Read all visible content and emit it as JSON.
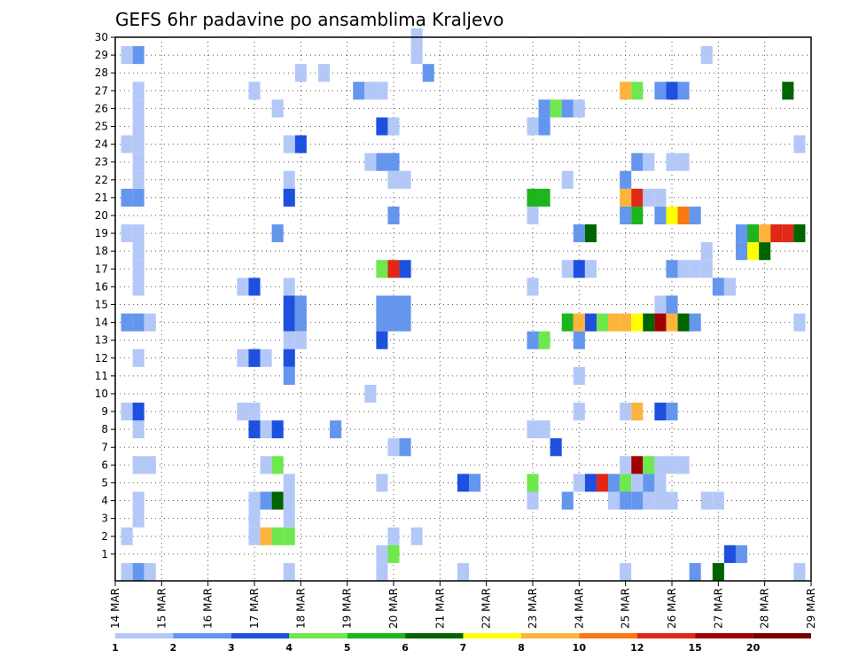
{
  "chart_data": {
    "type": "heatmap",
    "title": "GEFS 6hr padavine po ansamblima Kraljevo",
    "x_ticks": [
      "14 MAR",
      "15 MAR",
      "16 MAR",
      "17 MAR",
      "18 MAR",
      "19 MAR",
      "20 MAR",
      "21 MAR",
      "22 MAR",
      "23 MAR",
      "24 MAR",
      "25 MAR",
      "26 MAR",
      "27 MAR",
      "28 MAR",
      "29 MAR"
    ],
    "y_ticks": [
      "1",
      "2",
      "3",
      "4",
      "5",
      "6",
      "7",
      "8",
      "9",
      "10",
      "11",
      "12",
      "13",
      "14",
      "15",
      "16",
      "17",
      "18",
      "19",
      "20",
      "21",
      "22",
      "23",
      "24",
      "25",
      "26",
      "27",
      "28",
      "29",
      "30"
    ],
    "x_range": [
      "14 MAR",
      "29 MAR"
    ],
    "y_range": [
      0,
      30
    ],
    "grid": true,
    "colorbar_labels": [
      "1",
      "2",
      "3",
      "4",
      "5",
      "6",
      "7",
      "8",
      "10",
      "12",
      "15",
      "20"
    ],
    "colorbar_colors": [
      "#b4c8f8",
      "#6496ee",
      "#1e50e0",
      "#6ee84e",
      "#1eb41e",
      "#006400",
      "#ffff00",
      "#fcb43c",
      "#fa7814",
      "#e02814",
      "#a00000",
      "#780000"
    ],
    "cells": [
      {
        "d": "14 MAR 06",
        "m": 0,
        "c": 0
      },
      {
        "d": "14 MAR 12",
        "m": 0,
        "c": 1
      },
      {
        "d": "14 MAR 18",
        "m": 0,
        "c": 0
      },
      {
        "d": "14 MAR 06",
        "m": 2,
        "c": 0
      },
      {
        "d": "14 MAR 12",
        "m": 3,
        "c": 0
      },
      {
        "d": "14 MAR 12",
        "m": 4,
        "c": 0
      },
      {
        "d": "14 MAR 12",
        "m": 6,
        "c": 0
      },
      {
        "d": "14 MAR 18",
        "m": 6,
        "c": 0
      },
      {
        "d": "14 MAR 12",
        "m": 8,
        "c": 0
      },
      {
        "d": "14 MAR 06",
        "m": 9,
        "c": 0
      },
      {
        "d": "14 MAR 12",
        "m": 9,
        "c": 2
      },
      {
        "d": "14 MAR 12",
        "m": 12,
        "c": 0
      },
      {
        "d": "14 MAR 06",
        "m": 14,
        "c": 1
      },
      {
        "d": "14 MAR 12",
        "m": 14,
        "c": 1
      },
      {
        "d": "14 MAR 18",
        "m": 14,
        "c": 0
      },
      {
        "d": "14 MAR 12",
        "m": 16,
        "c": 0
      },
      {
        "d": "14 MAR 12",
        "m": 17,
        "c": 0
      },
      {
        "d": "14 MAR 12",
        "m": 18,
        "c": 0
      },
      {
        "d": "14 MAR 06",
        "m": 19,
        "c": 0
      },
      {
        "d": "14 MAR 12",
        "m": 19,
        "c": 0
      },
      {
        "d": "14 MAR 06",
        "m": 21,
        "c": 1
      },
      {
        "d": "14 MAR 12",
        "m": 21,
        "c": 1
      },
      {
        "d": "14 MAR 12",
        "m": 22,
        "c": 0
      },
      {
        "d": "14 MAR 12",
        "m": 23,
        "c": 0
      },
      {
        "d": "14 MAR 06",
        "m": 24,
        "c": 0
      },
      {
        "d": "14 MAR 12",
        "m": 24,
        "c": 0
      },
      {
        "d": "14 MAR 12",
        "m": 25,
        "c": 0
      },
      {
        "d": "14 MAR 12",
        "m": 26,
        "c": 0
      },
      {
        "d": "14 MAR 12",
        "m": 27,
        "c": 0
      },
      {
        "d": "14 MAR 06",
        "m": 29,
        "c": 0
      },
      {
        "d": "14 MAR 12",
        "m": 29,
        "c": 1
      },
      {
        "d": "16 MAR 18",
        "m": 12,
        "c": 0
      },
      {
        "d": "17 MAR 00",
        "m": 12,
        "c": 2
      },
      {
        "d": "17 MAR 06",
        "m": 12,
        "c": 0
      },
      {
        "d": "16 MAR 18",
        "m": 16,
        "c": 0
      },
      {
        "d": "17 MAR 00",
        "m": 16,
        "c": 2
      },
      {
        "d": "16 MAR 18",
        "m": 9,
        "c": 0
      },
      {
        "d": "17 MAR 00",
        "m": 9,
        "c": 0
      },
      {
        "d": "17 MAR 00",
        "m": 8,
        "c": 2
      },
      {
        "d": "17 MAR 06",
        "m": 8,
        "c": 0
      },
      {
        "d": "17 MAR 12",
        "m": 8,
        "c": 2
      },
      {
        "d": "17 MAR 06",
        "m": 6,
        "c": 0
      },
      {
        "d": "17 MAR 12",
        "m": 6,
        "c": 3
      },
      {
        "d": "17 MAR 00",
        "m": 4,
        "c": 0
      },
      {
        "d": "17 MAR 06",
        "m": 4,
        "c": 1
      },
      {
        "d": "17 MAR 12",
        "m": 4,
        "c": 5
      },
      {
        "d": "17 MAR 00",
        "m": 3,
        "c": 0
      },
      {
        "d": "17 MAR 00",
        "m": 2,
        "c": 0
      },
      {
        "d": "17 MAR 06",
        "m": 2,
        "c": 7
      },
      {
        "d": "17 MAR 12",
        "m": 2,
        "c": 3
      },
      {
        "d": "17 MAR 18",
        "m": 2,
        "c": 3
      },
      {
        "d": "17 MAR 00",
        "m": 27,
        "c": 0
      },
      {
        "d": "17 MAR 12",
        "m": 26,
        "c": 0
      },
      {
        "d": "17 MAR 12",
        "m": 19,
        "c": 1
      },
      {
        "d": "17 MAR 18",
        "m": 24,
        "c": 0
      },
      {
        "d": "18 MAR 00",
        "m": 24,
        "c": 2
      },
      {
        "d": "17 MAR 18",
        "m": 22,
        "c": 0
      },
      {
        "d": "17 MAR 18",
        "m": 21,
        "c": 2
      },
      {
        "d": "17 MAR 18",
        "m": 16,
        "c": 0
      },
      {
        "d": "17 MAR 18",
        "m": 15,
        "c": 2
      },
      {
        "d": "18 MAR 00",
        "m": 15,
        "c": 1
      },
      {
        "d": "17 MAR 18",
        "m": 14,
        "c": 2
      },
      {
        "d": "18 MAR 00",
        "m": 14,
        "c": 1
      },
      {
        "d": "17 MAR 18",
        "m": 13,
        "c": 0
      },
      {
        "d": "18 MAR 00",
        "m": 13,
        "c": 0
      },
      {
        "d": "17 MAR 18",
        "m": 12,
        "c": 2
      },
      {
        "d": "17 MAR 18",
        "m": 11,
        "c": 1
      },
      {
        "d": "17 MAR 18",
        "m": 5,
        "c": 0
      },
      {
        "d": "17 MAR 18",
        "m": 4,
        "c": 0
      },
      {
        "d": "17 MAR 18",
        "m": 3,
        "c": 0
      },
      {
        "d": "17 MAR 18",
        "m": 0,
        "c": 0
      },
      {
        "d": "18 MAR 00",
        "m": 28,
        "c": 0
      },
      {
        "d": "18 MAR 12",
        "m": 28,
        "c": 0
      },
      {
        "d": "18 MAR 18",
        "m": 8,
        "c": 1
      },
      {
        "d": "19 MAR 06",
        "m": 27,
        "c": 1
      },
      {
        "d": "19 MAR 12",
        "m": 27,
        "c": 0
      },
      {
        "d": "19 MAR 18",
        "m": 27,
        "c": 0
      },
      {
        "d": "19 MAR 12",
        "m": 23,
        "c": 0
      },
      {
        "d": "19 MAR 18",
        "m": 23,
        "c": 1
      },
      {
        "d": "20 MAR 00",
        "m": 23,
        "c": 1
      },
      {
        "d": "19 MAR 18",
        "m": 25,
        "c": 2
      },
      {
        "d": "20 MAR 00",
        "m": 25,
        "c": 0
      },
      {
        "d": "20 MAR 00",
        "m": 22,
        "c": 0
      },
      {
        "d": "20 MAR 06",
        "m": 22,
        "c": 0
      },
      {
        "d": "20 MAR 00",
        "m": 20,
        "c": 1
      },
      {
        "d": "19 MAR 18",
        "m": 17,
        "c": 3
      },
      {
        "d": "20 MAR 00",
        "m": 17,
        "c": 9
      },
      {
        "d": "20 MAR 06",
        "m": 17,
        "c": 2
      },
      {
        "d": "19 MAR 18",
        "m": 15,
        "c": 1
      },
      {
        "d": "20 MAR 00",
        "m": 15,
        "c": 1
      },
      {
        "d": "20 MAR 06",
        "m": 15,
        "c": 1
      },
      {
        "d": "19 MAR 18",
        "m": 14,
        "c": 1
      },
      {
        "d": "20 MAR 00",
        "m": 14,
        "c": 1
      },
      {
        "d": "20 MAR 06",
        "m": 14,
        "c": 1
      },
      {
        "d": "19 MAR 18",
        "m": 13,
        "c": 2
      },
      {
        "d": "19 MAR 12",
        "m": 10,
        "c": 0
      },
      {
        "d": "20 MAR 00",
        "m": 7,
        "c": 0
      },
      {
        "d": "20 MAR 06",
        "m": 7,
        "c": 1
      },
      {
        "d": "19 MAR 18",
        "m": 5,
        "c": 0
      },
      {
        "d": "20 MAR 00",
        "m": 2,
        "c": 0
      },
      {
        "d": "20 MAR 12",
        "m": 2,
        "c": 0
      },
      {
        "d": "19 MAR 18",
        "m": 1,
        "c": 0
      },
      {
        "d": "20 MAR 00",
        "m": 1,
        "c": 3
      },
      {
        "d": "19 MAR 18",
        "m": 0,
        "c": 0
      },
      {
        "d": "20 MAR 12",
        "m": 29,
        "c": 0
      },
      {
        "d": "20 MAR 12",
        "m": 30,
        "c": 0
      },
      {
        "d": "20 MAR 18",
        "m": 28,
        "c": 1
      },
      {
        "d": "21 MAR 12",
        "m": 5,
        "c": 2
      },
      {
        "d": "21 MAR 18",
        "m": 5,
        "c": 1
      },
      {
        "d": "21 MAR 12",
        "m": 0,
        "c": 0
      },
      {
        "d": "23 MAR 00",
        "m": 21,
        "c": 4
      },
      {
        "d": "23 MAR 06",
        "m": 21,
        "c": 4
      },
      {
        "d": "23 MAR 00",
        "m": 20,
        "c": 0
      },
      {
        "d": "23 MAR 00",
        "m": 25,
        "c": 0
      },
      {
        "d": "23 MAR 06",
        "m": 25,
        "c": 1
      },
      {
        "d": "23 MAR 06",
        "m": 26,
        "c": 1
      },
      {
        "d": "23 MAR 12",
        "m": 26,
        "c": 3
      },
      {
        "d": "23 MAR 18",
        "m": 26,
        "c": 1
      },
      {
        "d": "24 MAR 00",
        "m": 26,
        "c": 0
      },
      {
        "d": "23 MAR 18",
        "m": 22,
        "c": 0
      },
      {
        "d": "23 MAR 00",
        "m": 16,
        "c": 0
      },
      {
        "d": "23 MAR 00",
        "m": 13,
        "c": 1
      },
      {
        "d": "23 MAR 06",
        "m": 13,
        "c": 3
      },
      {
        "d": "23 MAR 00",
        "m": 8,
        "c": 0
      },
      {
        "d": "23 MAR 06",
        "m": 8,
        "c": 0
      },
      {
        "d": "23 MAR 12",
        "m": 7,
        "c": 2
      },
      {
        "d": "23 MAR 00",
        "m": 5,
        "c": 3
      },
      {
        "d": "23 MAR 00",
        "m": 4,
        "c": 0
      },
      {
        "d": "23 MAR 18",
        "m": 4,
        "c": 1
      },
      {
        "d": "23 MAR 18",
        "m": 14,
        "c": 4
      },
      {
        "d": "24 MAR 00",
        "m": 14,
        "c": 7
      },
      {
        "d": "24 MAR 06",
        "m": 14,
        "c": 2
      },
      {
        "d": "24 MAR 12",
        "m": 14,
        "c": 3
      },
      {
        "d": "24 MAR 18",
        "m": 14,
        "c": 7
      },
      {
        "d": "25 MAR 00",
        "m": 14,
        "c": 7
      },
      {
        "d": "25 MAR 06",
        "m": 14,
        "c": 6
      },
      {
        "d": "25 MAR 12",
        "m": 14,
        "c": 5
      },
      {
        "d": "25 MAR 18",
        "m": 14,
        "c": 10
      },
      {
        "d": "26 MAR 00",
        "m": 14,
        "c": 7
      },
      {
        "d": "26 MAR 06",
        "m": 14,
        "c": 5
      },
      {
        "d": "26 MAR 12",
        "m": 14,
        "c": 1
      },
      {
        "d": "24 MAR 00",
        "m": 13,
        "c": 1
      },
      {
        "d": "23 MAR 18",
        "m": 17,
        "c": 0
      },
      {
        "d": "24 MAR 00",
        "m": 17,
        "c": 2
      },
      {
        "d": "24 MAR 06",
        "m": 17,
        "c": 0
      },
      {
        "d": "24 MAR 00",
        "m": 19,
        "c": 1
      },
      {
        "d": "24 MAR 06",
        "m": 19,
        "c": 5
      },
      {
        "d": "24 MAR 00",
        "m": 11,
        "c": 0
      },
      {
        "d": "24 MAR 00",
        "m": 9,
        "c": 0
      },
      {
        "d": "24 MAR 00",
        "m": 5,
        "c": 0
      },
      {
        "d": "24 MAR 06",
        "m": 5,
        "c": 2
      },
      {
        "d": "24 MAR 12",
        "m": 5,
        "c": 9
      },
      {
        "d": "24 MAR 18",
        "m": 5,
        "c": 1
      },
      {
        "d": "25 MAR 00",
        "m": 5,
        "c": 3
      },
      {
        "d": "25 MAR 06",
        "m": 5,
        "c": 0
      },
      {
        "d": "25 MAR 12",
        "m": 5,
        "c": 1
      },
      {
        "d": "25 MAR 18",
        "m": 5,
        "c": 0
      },
      {
        "d": "24 MAR 18",
        "m": 4,
        "c": 0
      },
      {
        "d": "25 MAR 00",
        "m": 4,
        "c": 1
      },
      {
        "d": "25 MAR 06",
        "m": 4,
        "c": 1
      },
      {
        "d": "25 MAR 12",
        "m": 4,
        "c": 0
      },
      {
        "d": "25 MAR 18",
        "m": 4,
        "c": 0
      },
      {
        "d": "26 MAR 00",
        "m": 4,
        "c": 0
      },
      {
        "d": "25 MAR 00",
        "m": 6,
        "c": 0
      },
      {
        "d": "25 MAR 06",
        "m": 6,
        "c": 10
      },
      {
        "d": "25 MAR 12",
        "m": 6,
        "c": 3
      },
      {
        "d": "25 MAR 18",
        "m": 6,
        "c": 0
      },
      {
        "d": "26 MAR 00",
        "m": 6,
        "c": 0
      },
      {
        "d": "26 MAR 06",
        "m": 6,
        "c": 0
      },
      {
        "d": "25 MAR 00",
        "m": 9,
        "c": 0
      },
      {
        "d": "25 MAR 06",
        "m": 9,
        "c": 7
      },
      {
        "d": "25 MAR 18",
        "m": 9,
        "c": 2
      },
      {
        "d": "26 MAR 00",
        "m": 9,
        "c": 1
      },
      {
        "d": "25 MAR 00",
        "m": 20,
        "c": 1
      },
      {
        "d": "25 MAR 06",
        "m": 20,
        "c": 4
      },
      {
        "d": "25 MAR 18",
        "m": 20,
        "c": 1
      },
      {
        "d": "26 MAR 00",
        "m": 20,
        "c": 6
      },
      {
        "d": "26 MAR 06",
        "m": 20,
        "c": 8
      },
      {
        "d": "26 MAR 12",
        "m": 20,
        "c": 1
      },
      {
        "d": "25 MAR 00",
        "m": 21,
        "c": 7
      },
      {
        "d": "25 MAR 06",
        "m": 21,
        "c": 9
      },
      {
        "d": "25 MAR 12",
        "m": 21,
        "c": 0
      },
      {
        "d": "25 MAR 18",
        "m": 21,
        "c": 0
      },
      {
        "d": "25 MAR 00",
        "m": 22,
        "c": 1
      },
      {
        "d": "25 MAR 06",
        "m": 23,
        "c": 1
      },
      {
        "d": "25 MAR 12",
        "m": 23,
        "c": 0
      },
      {
        "d": "26 MAR 00",
        "m": 23,
        "c": 0
      },
      {
        "d": "26 MAR 06",
        "m": 23,
        "c": 0
      },
      {
        "d": "25 MAR 00",
        "m": 27,
        "c": 7
      },
      {
        "d": "25 MAR 06",
        "m": 27,
        "c": 3
      },
      {
        "d": "25 MAR 18",
        "m": 27,
        "c": 1
      },
      {
        "d": "26 MAR 00",
        "m": 27,
        "c": 2
      },
      {
        "d": "26 MAR 06",
        "m": 27,
        "c": 1
      },
      {
        "d": "25 MAR 18",
        "m": 15,
        "c": 0
      },
      {
        "d": "26 MAR 00",
        "m": 15,
        "c": 1
      },
      {
        "d": "26 MAR 00",
        "m": 17,
        "c": 1
      },
      {
        "d": "26 MAR 06",
        "m": 17,
        "c": 0
      },
      {
        "d": "26 MAR 12",
        "m": 17,
        "c": 0
      },
      {
        "d": "26 MAR 18",
        "m": 17,
        "c": 0
      },
      {
        "d": "26 MAR 18",
        "m": 18,
        "c": 0
      },
      {
        "d": "25 MAR 00",
        "m": 0,
        "c": 0
      },
      {
        "d": "26 MAR 18",
        "m": 4,
        "c": 0
      },
      {
        "d": "27 MAR 00",
        "m": 4,
        "c": 0
      },
      {
        "d": "26 MAR 18",
        "m": 29,
        "c": 0
      },
      {
        "d": "27 MAR 00",
        "m": 16,
        "c": 1
      },
      {
        "d": "27 MAR 06",
        "m": 16,
        "c": 0
      },
      {
        "d": "26 MAR 12",
        "m": 0,
        "c": 1
      },
      {
        "d": "27 MAR 00",
        "m": 0,
        "c": 5
      },
      {
        "d": "27 MAR 06",
        "m": 1,
        "c": 2
      },
      {
        "d": "27 MAR 12",
        "m": 1,
        "c": 1
      },
      {
        "d": "27 MAR 12",
        "m": 18,
        "c": 1
      },
      {
        "d": "27 MAR 18",
        "m": 18,
        "c": 6
      },
      {
        "d": "28 MAR 00",
        "m": 18,
        "c": 5
      },
      {
        "d": "27 MAR 12",
        "m": 19,
        "c": 1
      },
      {
        "d": "27 MAR 18",
        "m": 19,
        "c": 4
      },
      {
        "d": "28 MAR 00",
        "m": 19,
        "c": 7
      },
      {
        "d": "28 MAR 06",
        "m": 19,
        "c": 9
      },
      {
        "d": "28 MAR 12",
        "m": 19,
        "c": 9
      },
      {
        "d": "28 MAR 18",
        "m": 19,
        "c": 5
      },
      {
        "d": "28 MAR 12",
        "m": 27,
        "c": 5
      },
      {
        "d": "28 MAR 18",
        "m": 24,
        "c": 0
      },
      {
        "d": "28 MAR 18",
        "m": 14,
        "c": 0
      },
      {
        "d": "28 MAR 18",
        "m": 0,
        "c": 0
      }
    ]
  }
}
